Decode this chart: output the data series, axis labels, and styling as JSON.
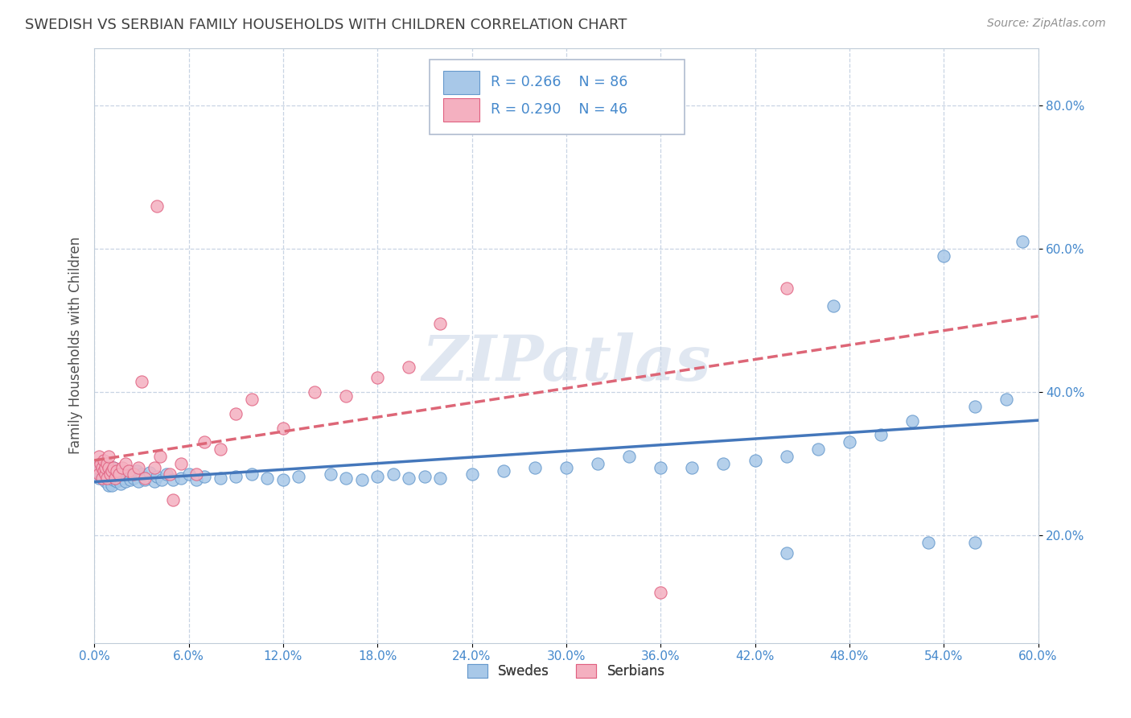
{
  "title": "SWEDISH VS SERBIAN FAMILY HOUSEHOLDS WITH CHILDREN CORRELATION CHART",
  "source": "Source: ZipAtlas.com",
  "ylabel": "Family Households with Children",
  "swede_color": "#a8c8e8",
  "serb_color": "#f4b0c0",
  "swede_edge_color": "#6699cc",
  "serb_edge_color": "#e06080",
  "swede_line_color": "#4477bb",
  "serb_line_color": "#dd6677",
  "legend_swede_label": "Swedes",
  "legend_serb_label": "Serbians",
  "watermark": "ZIPatlas",
  "watermark_color": "#ccd8e8",
  "background_color": "#ffffff",
  "grid_color": "#c8d4e4",
  "title_color": "#404040",
  "source_color": "#909090",
  "axis_label_color": "#4488cc",
  "xlim": [
    0.0,
    0.6
  ],
  "ylim": [
    0.05,
    0.88
  ],
  "yticks": [
    0.2,
    0.4,
    0.6,
    0.8
  ],
  "xticks": [
    0.0,
    0.06,
    0.12,
    0.18,
    0.24,
    0.3,
    0.36,
    0.42,
    0.48,
    0.54,
    0.6
  ],
  "swede_x": [
    0.002,
    0.003,
    0.003,
    0.004,
    0.004,
    0.005,
    0.005,
    0.005,
    0.006,
    0.006,
    0.006,
    0.007,
    0.007,
    0.008,
    0.008,
    0.009,
    0.009,
    0.01,
    0.01,
    0.011,
    0.011,
    0.012,
    0.012,
    0.013,
    0.014,
    0.015,
    0.015,
    0.016,
    0.017,
    0.018,
    0.019,
    0.02,
    0.022,
    0.023,
    0.025,
    0.027,
    0.028,
    0.03,
    0.032,
    0.035,
    0.038,
    0.04,
    0.043,
    0.046,
    0.05,
    0.055,
    0.06,
    0.065,
    0.07,
    0.08,
    0.09,
    0.1,
    0.11,
    0.12,
    0.13,
    0.15,
    0.16,
    0.17,
    0.18,
    0.19,
    0.2,
    0.21,
    0.22,
    0.24,
    0.26,
    0.28,
    0.3,
    0.32,
    0.34,
    0.36,
    0.38,
    0.4,
    0.42,
    0.44,
    0.46,
    0.48,
    0.5,
    0.52,
    0.54,
    0.56,
    0.58,
    0.59,
    0.44,
    0.47,
    0.53,
    0.56
  ],
  "swede_y": [
    0.29,
    0.295,
    0.28,
    0.285,
    0.295,
    0.28,
    0.29,
    0.3,
    0.28,
    0.285,
    0.295,
    0.275,
    0.285,
    0.28,
    0.29,
    0.295,
    0.27,
    0.285,
    0.295,
    0.27,
    0.285,
    0.278,
    0.295,
    0.285,
    0.275,
    0.29,
    0.278,
    0.285,
    0.272,
    0.288,
    0.28,
    0.275,
    0.285,
    0.278,
    0.28,
    0.29,
    0.275,
    0.285,
    0.278,
    0.288,
    0.275,
    0.282,
    0.278,
    0.285,
    0.278,
    0.28,
    0.285,
    0.278,
    0.282,
    0.28,
    0.282,
    0.285,
    0.28,
    0.278,
    0.282,
    0.285,
    0.28,
    0.278,
    0.282,
    0.285,
    0.28,
    0.282,
    0.28,
    0.285,
    0.29,
    0.295,
    0.295,
    0.3,
    0.31,
    0.295,
    0.295,
    0.3,
    0.305,
    0.31,
    0.32,
    0.33,
    0.34,
    0.36,
    0.59,
    0.38,
    0.39,
    0.61,
    0.175,
    0.52,
    0.19,
    0.19
  ],
  "serb_x": [
    0.002,
    0.003,
    0.003,
    0.004,
    0.005,
    0.005,
    0.006,
    0.006,
    0.007,
    0.007,
    0.008,
    0.008,
    0.009,
    0.009,
    0.01,
    0.011,
    0.012,
    0.013,
    0.014,
    0.016,
    0.018,
    0.02,
    0.022,
    0.025,
    0.028,
    0.032,
    0.038,
    0.042,
    0.048,
    0.055,
    0.065,
    0.07,
    0.08,
    0.09,
    0.1,
    0.12,
    0.14,
    0.16,
    0.18,
    0.2,
    0.03,
    0.04,
    0.05,
    0.22,
    0.36,
    0.44
  ],
  "serb_y": [
    0.295,
    0.285,
    0.31,
    0.3,
    0.28,
    0.295,
    0.29,
    0.305,
    0.285,
    0.295,
    0.3,
    0.28,
    0.295,
    0.31,
    0.285,
    0.29,
    0.295,
    0.28,
    0.29,
    0.285,
    0.295,
    0.3,
    0.29,
    0.285,
    0.295,
    0.28,
    0.295,
    0.31,
    0.285,
    0.3,
    0.285,
    0.33,
    0.32,
    0.37,
    0.39,
    0.35,
    0.4,
    0.395,
    0.42,
    0.435,
    0.415,
    0.66,
    0.25,
    0.495,
    0.12,
    0.545
  ]
}
